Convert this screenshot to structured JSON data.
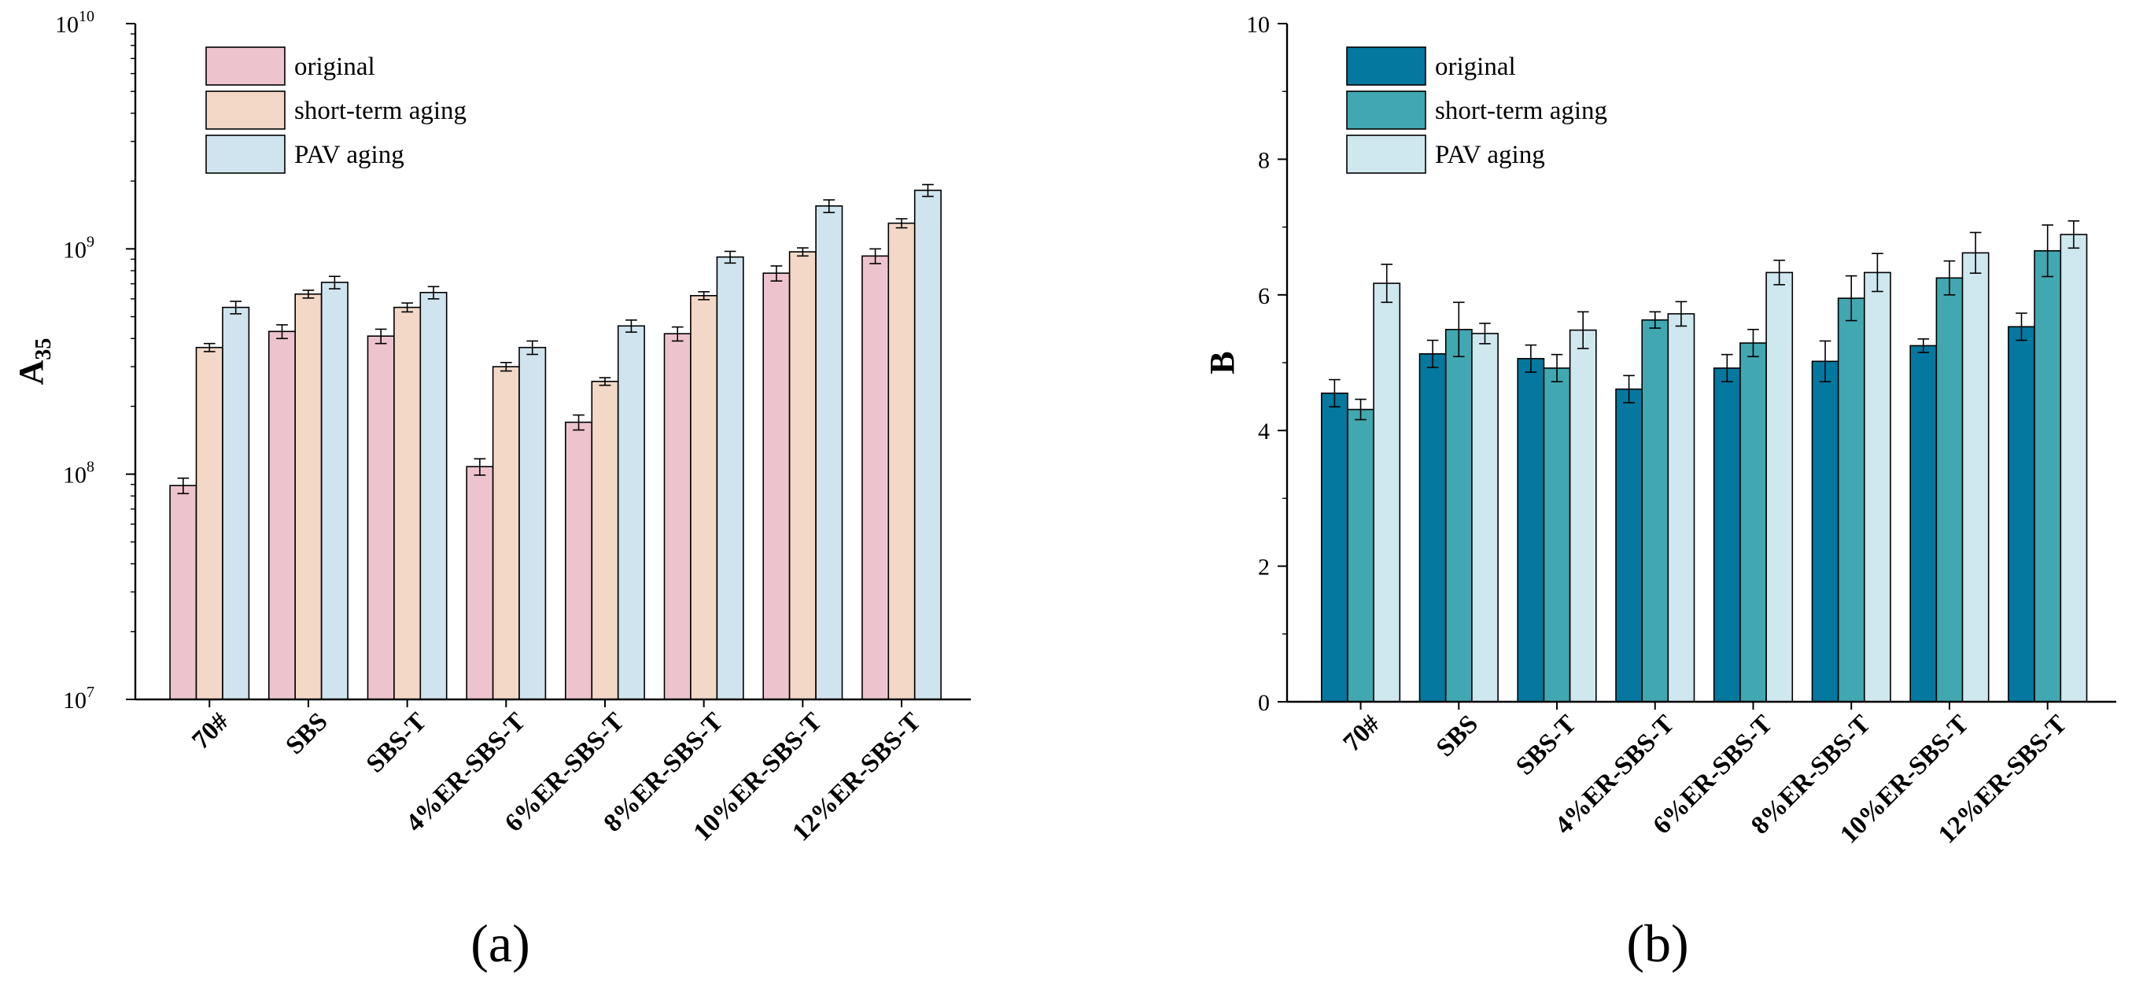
{
  "figure": {
    "labels": [
      "(a)",
      "(b)"
    ]
  },
  "chart_data": [
    {
      "type": "bar",
      "panel": "a",
      "yscale": "log",
      "title": "",
      "xlabel": "",
      "ylabel": "A",
      "ylabel_subscript": "35",
      "ylim": [
        10000000,
        10000000000
      ],
      "ytick_labels": [
        {
          "base": "10",
          "exp": "7"
        },
        {
          "base": "10",
          "exp": "8"
        },
        {
          "base": "10",
          "exp": "9"
        },
        {
          "base": "10",
          "exp": "10"
        }
      ],
      "legend_position": "top-left",
      "categories": [
        "70#",
        "SBS",
        "SBS-T",
        "4%ER-SBS-T",
        "6%ER-SBS-T",
        "8%ER-SBS-T",
        "10%ER-SBS-T",
        "12%ER-SBS-T"
      ],
      "series": [
        {
          "name": "original",
          "color": "#EDC4CD",
          "values": [
            89000000,
            430000000,
            410000000,
            108000000,
            170000000,
            420000000,
            780000000,
            930000000
          ],
          "errors": [
            7000000,
            30000000,
            30000000,
            9000000,
            13000000,
            30000000,
            60000000,
            70000000
          ]
        },
        {
          "name": "short-term aging",
          "color": "#F3D8C7",
          "values": [
            365000000,
            630000000,
            550000000,
            300000000,
            258000000,
            620000000,
            970000000,
            1300000000
          ],
          "errors": [
            15000000,
            25000000,
            25000000,
            13000000,
            10000000,
            25000000,
            40000000,
            60000000
          ]
        },
        {
          "name": "PAV aging",
          "color": "#CFE4EE",
          "values": [
            550000000,
            710000000,
            640000000,
            365000000,
            455000000,
            920000000,
            1550000000,
            1820000000
          ],
          "errors": [
            35000000,
            45000000,
            40000000,
            25000000,
            28000000,
            55000000,
            100000000,
            110000000
          ]
        }
      ]
    },
    {
      "type": "bar",
      "panel": "b",
      "yscale": "linear",
      "title": "",
      "xlabel": "",
      "ylabel": "B",
      "ylim": [
        0,
        10
      ],
      "ytick_labels": [
        "0",
        "2",
        "4",
        "6",
        "8",
        "10"
      ],
      "legend_position": "top-left",
      "categories": [
        "70#",
        "SBS",
        "SBS-T",
        "4%ER-SBS-T",
        "6%ER-SBS-T",
        "8%ER-SBS-T",
        "10%ER-SBS-T",
        "12%ER-SBS-T"
      ],
      "series": [
        {
          "name": "original",
          "color": "#04789E",
          "values": [
            4.55,
            5.13,
            5.06,
            4.61,
            4.92,
            5.02,
            5.25,
            5.53
          ],
          "errors": [
            0.2,
            0.2,
            0.2,
            0.2,
            0.2,
            0.3,
            0.1,
            0.2
          ]
        },
        {
          "name": "short-term aging",
          "color": "#41A7B0",
          "values": [
            4.31,
            5.49,
            4.92,
            5.63,
            5.29,
            5.95,
            6.25,
            6.65
          ],
          "errors": [
            0.15,
            0.4,
            0.2,
            0.12,
            0.2,
            0.33,
            0.25,
            0.38
          ]
        },
        {
          "name": "PAV aging",
          "color": "#CFE7EE",
          "values": [
            6.17,
            5.43,
            5.48,
            5.72,
            6.33,
            6.33,
            6.62,
            6.89
          ],
          "errors": [
            0.28,
            0.15,
            0.27,
            0.18,
            0.18,
            0.28,
            0.3,
            0.2
          ]
        }
      ]
    }
  ]
}
